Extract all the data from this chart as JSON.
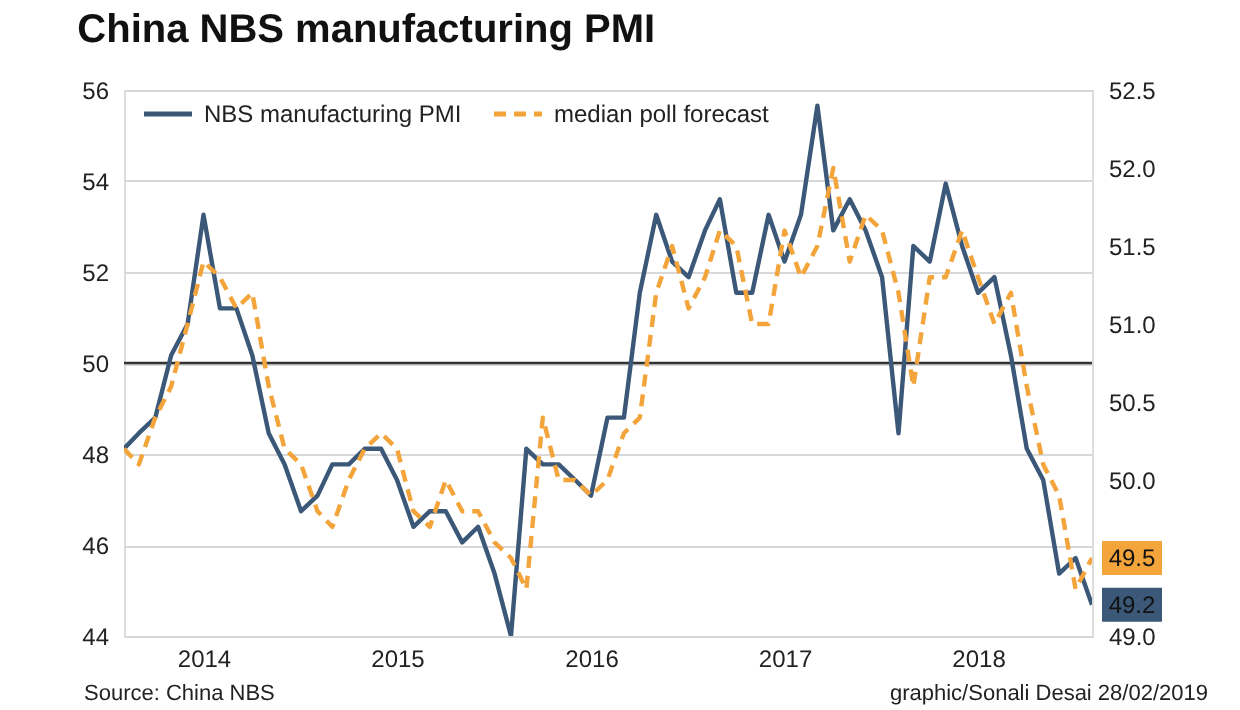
{
  "chart_data": {
    "type": "line",
    "title": "China NBS manufacturing PMI",
    "x": [
      "2014-02",
      "2014-03",
      "2014-04",
      "2014-05",
      "2014-06",
      "2014-07",
      "2014-08",
      "2014-09",
      "2014-10",
      "2014-11",
      "2014-12",
      "2015-01",
      "2015-02",
      "2015-03",
      "2015-04",
      "2015-05",
      "2015-06",
      "2015-07",
      "2015-08",
      "2015-09",
      "2015-10",
      "2015-11",
      "2015-12",
      "2016-01",
      "2016-02",
      "2016-03",
      "2016-04",
      "2016-05",
      "2016-06",
      "2016-07",
      "2016-08",
      "2016-09",
      "2016-10",
      "2016-11",
      "2016-12",
      "2017-01",
      "2017-02",
      "2017-03",
      "2017-04",
      "2017-05",
      "2017-06",
      "2017-07",
      "2017-08",
      "2017-09",
      "2017-10",
      "2017-11",
      "2017-12",
      "2018-01",
      "2018-02",
      "2018-03",
      "2018-04",
      "2018-05",
      "2018-06",
      "2018-07",
      "2018-08",
      "2018-09",
      "2018-10",
      "2018-11",
      "2018-12",
      "2019-01",
      "2019-02"
    ],
    "series": [
      {
        "name": "NBS manufacturing PMI",
        "color": "#3b5878",
        "axis": "y2",
        "line_style": "solid",
        "value_labels": [
          null,
          null,
          null,
          null,
          null,
          null,
          null,
          null,
          null,
          null,
          null,
          null,
          null,
          null,
          null,
          null,
          null,
          null,
          null,
          null,
          null,
          null,
          null,
          null,
          null,
          null,
          null,
          null,
          null,
          null,
          null,
          null,
          null,
          null,
          null,
          null,
          null,
          null,
          null,
          null,
          null,
          null,
          null,
          null,
          null,
          null,
          null,
          null,
          null,
          null,
          null,
          null,
          null,
          null,
          null,
          null,
          null,
          null,
          null,
          null,
          "49.2"
        ],
        "values": [
          50.2,
          50.3,
          50.4,
          50.8,
          51.0,
          51.7,
          51.1,
          51.1,
          50.8,
          50.3,
          50.1,
          49.8,
          49.9,
          50.1,
          50.1,
          50.2,
          50.2,
          50.0,
          49.7,
          49.8,
          49.8,
          49.6,
          49.7,
          49.4,
          49.0,
          50.2,
          50.1,
          50.1,
          50.0,
          49.9,
          50.4,
          50.4,
          51.2,
          51.7,
          51.4,
          51.3,
          51.6,
          51.8,
          51.2,
          51.2,
          51.7,
          51.4,
          51.7,
          52.4,
          51.6,
          51.8,
          51.6,
          51.3,
          50.3,
          51.5,
          51.4,
          51.9,
          51.5,
          51.2,
          51.3,
          50.8,
          50.2,
          50.0,
          49.4,
          49.5,
          49.2
        ]
      },
      {
        "name": "median poll forecast",
        "color": "#f3a43a",
        "axis": "y2",
        "line_style": "dashed",
        "value_labels": [
          null,
          null,
          null,
          null,
          null,
          null,
          null,
          null,
          null,
          null,
          null,
          null,
          null,
          null,
          null,
          null,
          null,
          null,
          null,
          null,
          null,
          null,
          null,
          null,
          null,
          null,
          null,
          null,
          null,
          null,
          null,
          null,
          null,
          null,
          null,
          null,
          null,
          null,
          null,
          null,
          null,
          null,
          null,
          null,
          null,
          null,
          null,
          null,
          null,
          null,
          null,
          null,
          null,
          null,
          null,
          null,
          null,
          null,
          null,
          null,
          "49.5"
        ],
        "values": [
          50.2,
          50.1,
          50.4,
          50.6,
          51.0,
          51.4,
          51.3,
          51.1,
          51.2,
          50.6,
          50.2,
          50.1,
          49.8,
          49.7,
          50.0,
          50.2,
          50.3,
          50.2,
          49.8,
          49.7,
          50.0,
          49.8,
          49.8,
          49.6,
          49.5,
          49.3,
          50.4,
          50.0,
          50.0,
          49.9,
          50.0,
          50.3,
          50.4,
          51.2,
          51.5,
          51.1,
          51.3,
          51.6,
          51.5,
          51.0,
          51.0,
          51.6,
          51.3,
          51.5,
          52.0,
          51.4,
          51.7,
          51.6,
          51.2,
          50.6,
          51.3,
          51.3,
          51.6,
          51.3,
          51.0,
          51.2,
          50.6,
          50.1,
          49.9,
          49.3,
          49.5
        ]
      }
    ],
    "xlim": [
      "2014-02",
      "2019-02"
    ],
    "xticks": [
      {
        "value": "2014-07",
        "label": "2014"
      },
      {
        "value": "2015-07",
        "label": "2015"
      },
      {
        "value": "2016-07",
        "label": "2016"
      },
      {
        "value": "2017-07",
        "label": "2017"
      },
      {
        "value": "2018-07",
        "label": "2018"
      }
    ],
    "ylim": [
      44,
      56
    ],
    "yticks": [
      44,
      46,
      48,
      50,
      52,
      54,
      56
    ],
    "y2lim": [
      49.0,
      52.5
    ],
    "y2ticks": [
      {
        "value": 49.0,
        "label": "49.0"
      },
      {
        "value": 50.0,
        "label": "50.0"
      },
      50.5,
      {
        "value": 51.0,
        "label": "51.0"
      },
      51.5,
      {
        "value": 52.0,
        "label": "52.0"
      },
      52.5
    ],
    "ref_lines": [
      {
        "axis": "y",
        "value": 50,
        "color": "#333333"
      }
    ],
    "annotations": [
      "Source: China NBS",
      "graphic/Sonali Desai 28/02/2019"
    ],
    "grid": "y",
    "legend": "top left"
  }
}
